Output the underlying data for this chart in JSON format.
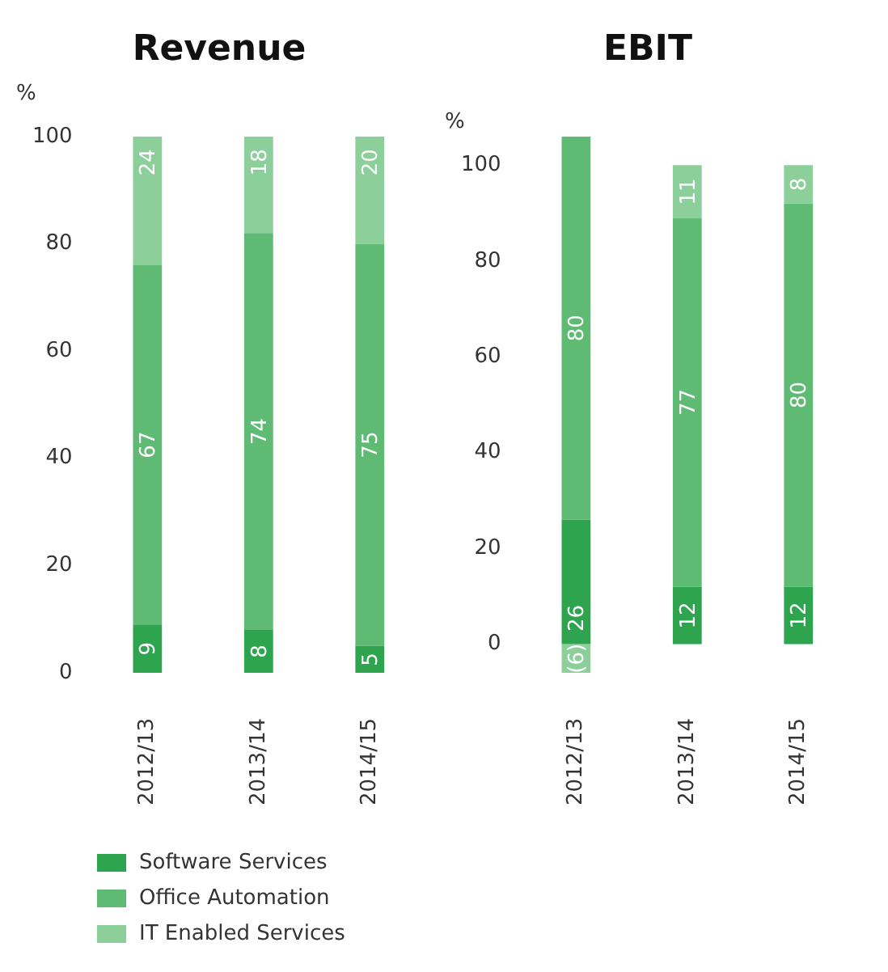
{
  "chart_data": [
    {
      "type": "bar",
      "title": "Revenue",
      "ylabel": "%",
      "categories": [
        "2012/13",
        "2013/14",
        "2014/15"
      ],
      "stacked": true,
      "ylim": [
        0,
        100
      ],
      "yticks": [
        0,
        20,
        40,
        60,
        80,
        100
      ],
      "legend": "bottom",
      "series": [
        {
          "name": "Software Services",
          "color": "#2ea44f",
          "values": [
            9,
            8,
            5
          ],
          "value_labels": [
            "9",
            "8",
            "5"
          ]
        },
        {
          "name": "Office Automation",
          "color": "#5fba74",
          "values": [
            67,
            74,
            75
          ],
          "value_labels": [
            "67",
            "74",
            "75"
          ]
        },
        {
          "name": "IT Enabled Services",
          "color": "#8ccf9a",
          "values": [
            24,
            18,
            20
          ],
          "value_labels": [
            "24",
            "18",
            "20"
          ]
        }
      ]
    },
    {
      "type": "bar",
      "title": "EBIT",
      "ylabel": "%",
      "categories": [
        "2012/13",
        "2013/14",
        "2014/15"
      ],
      "stacked": true,
      "ylim": [
        -6,
        106
      ],
      "yticks": [
        0,
        20,
        40,
        60,
        80,
        100
      ],
      "series": [
        {
          "color": "#2ea44f",
          "values": [
            26,
            12,
            12
          ],
          "value_labels": [
            "26",
            "12",
            "12"
          ]
        },
        {
          "color": "#5fba74",
          "values": [
            80,
            77,
            80
          ],
          "value_labels": [
            "80",
            "77",
            "80"
          ]
        },
        {
          "color": "#8ccf9a",
          "values": [
            -6,
            11,
            8
          ],
          "value_labels": [
            "(6)",
            "11",
            "8"
          ]
        }
      ]
    }
  ]
}
